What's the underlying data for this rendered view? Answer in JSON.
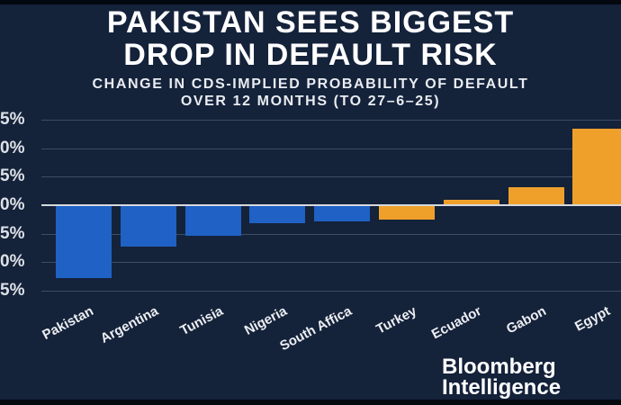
{
  "header": {
    "title_line1": "PAKISTAN SEES BIGGEST",
    "title_line2": "DROP IN DEFAULT RISK",
    "subtitle_line1": "CHANGE IN CDS-IMPLIED PROBABILITY OF DEFAULT",
    "subtitle_line2": "OVER 12 MONTHS (TO 27–6–25)"
  },
  "branding": {
    "logo_line1": "Bloomberg",
    "logo_line2": "Intelligence"
  },
  "colors": {
    "background": "#14223A",
    "negative_blue": "#1F61C5",
    "positive_orange": "#EFA02B",
    "gridline": "#3C4D66",
    "zero_line": "#D5D9DE",
    "title_text": "#FFFFFF",
    "border": "#04080F"
  },
  "chart_data": {
    "type": "bar",
    "title": "PAKISTAN SEES BIGGEST DROP IN DEFAULT RISK",
    "subtitle": "CHANGE IN CDS-IMPLIED PROBABILITY OF DEFAULT OVER 12 MONTHS (TO 27–6–25)",
    "ylabel": "Change in CDS-implied probability of default",
    "unit": "%",
    "categories": [
      "Pakistan",
      "Argentina",
      "Tunisia",
      "Nigeria",
      "South Affica",
      "Turkey",
      "Ecuador",
      "Gabon",
      "Egypt"
    ],
    "values": [
      -12.8,
      -7.3,
      -5.3,
      -3.2,
      -2.8,
      -2.5,
      1.0,
      3.2,
      13.4
    ],
    "bar_colors": [
      "blue",
      "blue",
      "blue",
      "blue",
      "blue",
      "orange",
      "orange",
      "orange",
      "orange"
    ],
    "ylim": [
      -15,
      15
    ],
    "grid": true,
    "legend": false,
    "y_ticks": [
      {
        "value": 15,
        "label": "5%"
      },
      {
        "value": 10,
        "label": "0%"
      },
      {
        "value": 5,
        "label": "5%"
      },
      {
        "value": 0,
        "label": "0%"
      },
      {
        "value": -5,
        "label": "5%"
      },
      {
        "value": -10,
        "label": "0%"
      },
      {
        "value": -15,
        "label": "5%"
      }
    ],
    "y_axis_note": "tick labels truncated at image left edge (15/10/5/0/-5/-10/-15 %)"
  }
}
